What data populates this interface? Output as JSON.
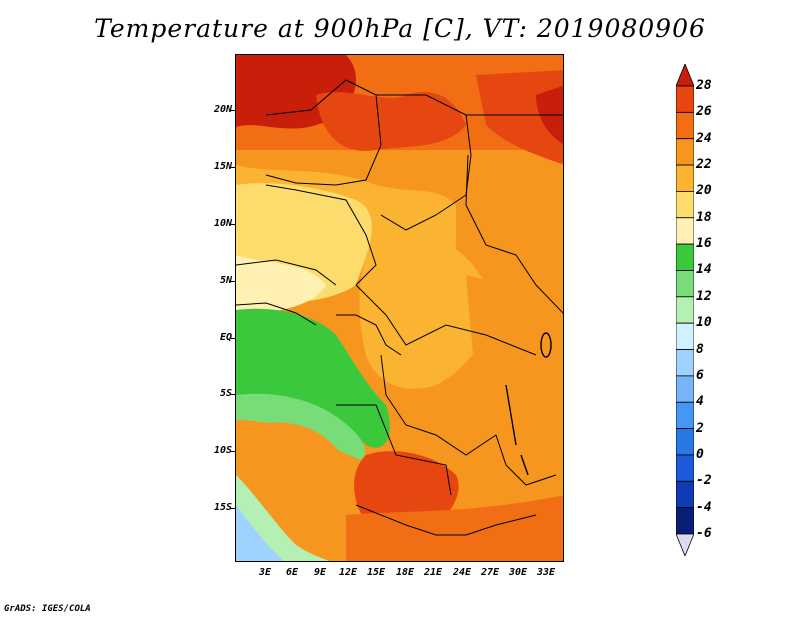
{
  "title": "Temperature at 900hPa [C], VT: 2019080906",
  "credit": "GrADS: IGES/COLA",
  "map": {
    "region": "Central Africa",
    "y_axis_labels": [
      "20N",
      "15N",
      "10N",
      "5N",
      "EQ",
      "5S",
      "10S",
      "15S"
    ],
    "x_axis_labels": [
      "3E",
      "6E",
      "9E",
      "12E",
      "15E",
      "18E",
      "21E",
      "24E",
      "27E",
      "30E",
      "33E"
    ]
  },
  "colorbar": {
    "labels": [
      "28",
      "26",
      "24",
      "22",
      "20",
      "18",
      "16",
      "14",
      "12",
      "10",
      "8",
      "6",
      "4",
      "2",
      "0",
      "-2",
      "-4",
      "-6"
    ],
    "colors": [
      "#c81e0a",
      "#e6460f",
      "#f26e14",
      "#f7961e",
      "#fbb432",
      "#fddc6e",
      "#fff0b4",
      "#3cc83c",
      "#78dc78",
      "#b4f0b4",
      "#d2f0ff",
      "#a0d2ff",
      "#78b4fa",
      "#4696f5",
      "#2878e6",
      "#1e5adc",
      "#0f3cb4",
      "#0a1e78",
      "#dcdcf0"
    ]
  }
}
